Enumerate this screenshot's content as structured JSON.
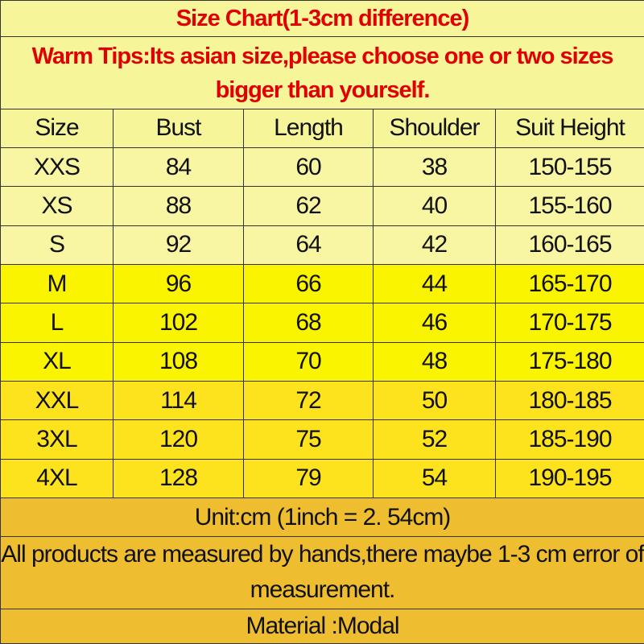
{
  "title": "Size Chart(1-3cm difference)",
  "tips": "Warm Tips:Its asian size,please choose one or two sizes bigger than yourself.",
  "columns": [
    "Size",
    "Bust",
    "Length",
    "Shoulder",
    "Suit Height"
  ],
  "rows": [
    [
      "XXS",
      "84",
      "60",
      "38",
      "150-155"
    ],
    [
      "XS",
      "88",
      "62",
      "40",
      "155-160"
    ],
    [
      "S",
      "92",
      "64",
      "42",
      "160-165"
    ],
    [
      "M",
      "96",
      "66",
      "44",
      "165-170"
    ],
    [
      "L",
      "102",
      "68",
      "46",
      "170-175"
    ],
    [
      "XL",
      "108",
      "70",
      "48",
      "175-180"
    ],
    [
      "XXL",
      "114",
      "72",
      "50",
      "180-185"
    ],
    [
      "3XL",
      "120",
      "75",
      "52",
      "185-190"
    ],
    [
      "4XL",
      "128",
      "79",
      "54",
      "190-195"
    ]
  ],
  "unit": "Unit:cm (1inch = 2. 54cm)",
  "note": "All products are measured by hands,there maybe 1-3 cm error of measurement.",
  "material": "Material :Modal",
  "colors": {
    "title_text": "#e00000",
    "header_bg": "#f6f59a",
    "rows_pale": "#f8f6a2",
    "rows_bright": "#faf400",
    "rows_gold": "#fde31e",
    "footer_bg": "#eebd30"
  }
}
